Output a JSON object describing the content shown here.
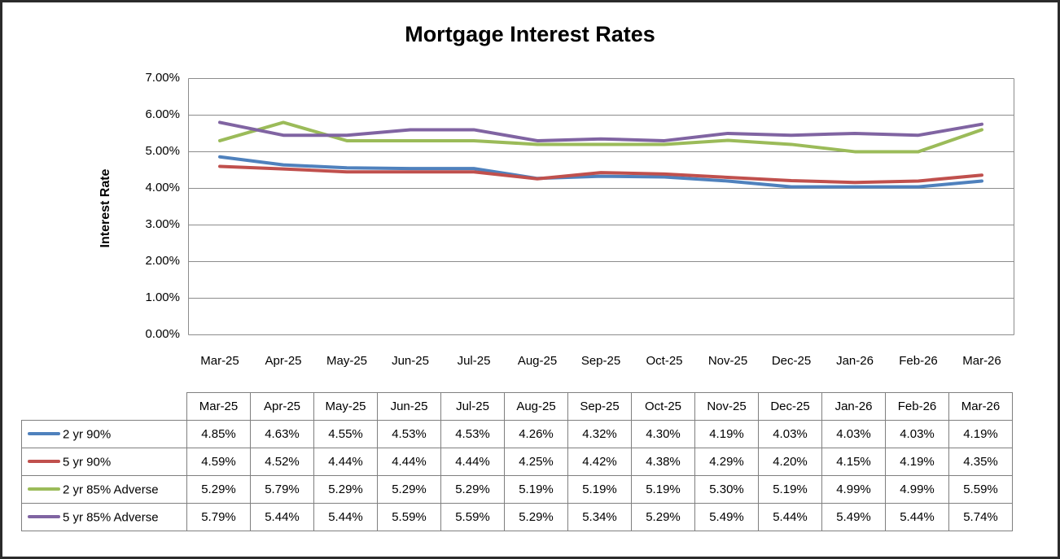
{
  "chart": {
    "title": "Mortgage Interest Rates",
    "y_axis_title": "Interest Rate",
    "y_tick_labels": [
      "7.00%",
      "6.00%",
      "5.00%",
      "4.00%",
      "3.00%",
      "2.00%",
      "1.00%",
      "0.00%"
    ]
  },
  "chart_data": {
    "type": "line",
    "title": "Mortgage Interest Rates",
    "xlabel": "",
    "ylabel": "Interest Rate",
    "ylim": [
      0,
      7
    ],
    "y_tick_step": 1,
    "y_tick_format": "0.00%",
    "grid": true,
    "legend_position": "table-left-column",
    "categories": [
      "Mar-25",
      "Apr-25",
      "May-25",
      "Jun-25",
      "Jul-25",
      "Aug-25",
      "Sep-25",
      "Oct-25",
      "Nov-25",
      "Dec-25",
      "Jan-26",
      "Feb-26",
      "Mar-26"
    ],
    "series": [
      {
        "name": "2 yr 90%",
        "color": "#4F81BD",
        "values": [
          4.85,
          4.63,
          4.55,
          4.53,
          4.53,
          4.26,
          4.32,
          4.3,
          4.19,
          4.03,
          4.03,
          4.03,
          4.19
        ]
      },
      {
        "name": "5 yr 90%",
        "color": "#C0504D",
        "values": [
          4.59,
          4.52,
          4.44,
          4.44,
          4.44,
          4.25,
          4.42,
          4.38,
          4.29,
          4.2,
          4.15,
          4.19,
          4.35
        ]
      },
      {
        "name": "2 yr 85% Adverse",
        "color": "#9BBB59",
        "values": [
          5.29,
          5.79,
          5.29,
          5.29,
          5.29,
          5.19,
          5.19,
          5.19,
          5.3,
          5.19,
          4.99,
          4.99,
          5.59
        ]
      },
      {
        "name": "5 yr 85% Adverse",
        "color": "#8064A2",
        "values": [
          5.79,
          5.44,
          5.44,
          5.59,
          5.59,
          5.29,
          5.34,
          5.29,
          5.49,
          5.44,
          5.49,
          5.44,
          5.74
        ]
      }
    ]
  },
  "colors": {
    "gridline": "#8c8c8c",
    "plot_border": "#8c8c8c",
    "table_border": "#7f7f7f",
    "text": "#000000",
    "frame_border": "#2b2b2b",
    "background": "#ffffff"
  }
}
